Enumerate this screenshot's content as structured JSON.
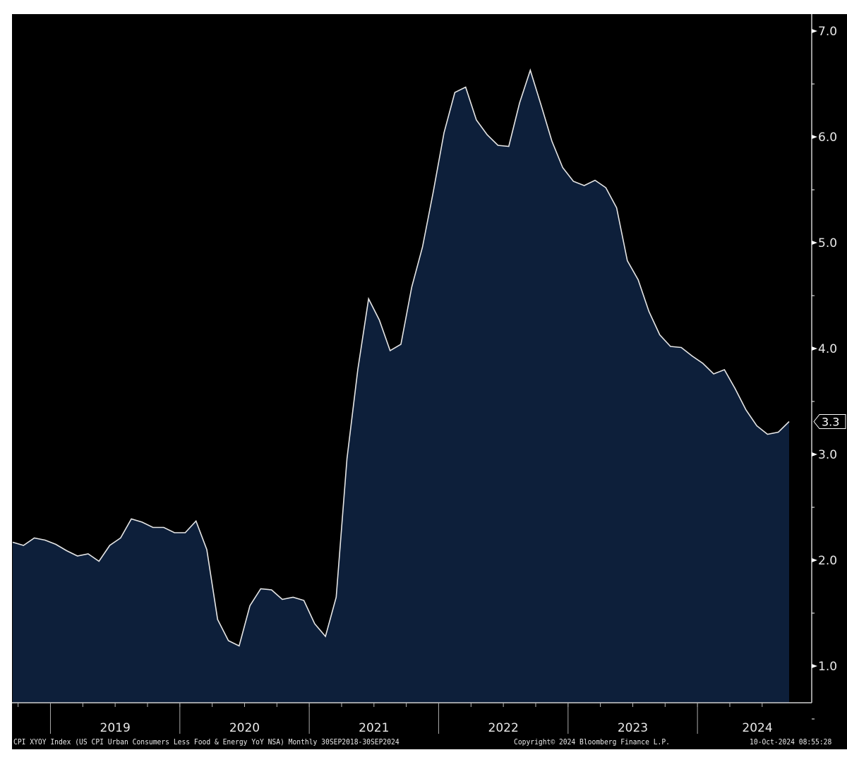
{
  "chart_data": {
    "type": "area",
    "title": "",
    "xlabel": "",
    "ylabel": "",
    "x_start": "2018-09",
    "x_end": "2024-09",
    "frequency": "monthly",
    "ylim": [
      0.65,
      7.15
    ],
    "yticks": [
      "1.0",
      "2.0",
      "3.0",
      "4.0",
      "5.0",
      "6.0",
      "7.0"
    ],
    "year_labels": [
      "2019",
      "2020",
      "2021",
      "2022",
      "2023",
      "2024"
    ],
    "grid": false,
    "y_axis_side": "right",
    "last_value_label": "3.3",
    "series": [
      {
        "values": [
          2.17,
          2.14,
          2.21,
          2.19,
          2.15,
          2.09,
          2.04,
          2.06,
          1.99,
          2.14,
          2.21,
          2.39,
          2.36,
          2.31,
          2.31,
          2.26,
          2.26,
          2.37,
          2.1,
          1.44,
          1.24,
          1.19,
          1.57,
          1.73,
          1.72,
          1.63,
          1.65,
          1.62,
          1.4,
          1.28,
          1.65,
          2.96,
          3.8,
          4.47,
          4.27,
          3.98,
          4.04,
          4.58,
          4.96,
          5.48,
          6.04,
          6.42,
          6.47,
          6.16,
          6.02,
          5.92,
          5.91,
          6.32,
          6.63,
          6.3,
          5.96,
          5.71,
          5.58,
          5.54,
          5.59,
          5.52,
          5.33,
          4.83,
          4.65,
          4.35,
          4.13,
          4.02,
          4.01,
          3.93,
          3.86,
          3.76,
          3.8,
          3.62,
          3.42,
          3.27,
          3.19,
          3.21,
          3.31
        ]
      }
    ],
    "colors": {
      "background": "#000000",
      "fill": "#0d1f3a",
      "line": "#e6e6e6",
      "text": "#e8e8e8"
    }
  },
  "footer": {
    "description": "CPI XYOY Index (US CPI Urban Consumers Less Food & Energy YoY NSA)  Monthly 30SEP2018-30SEP2024",
    "copyright": "Copyright© 2024 Bloomberg Finance L.P.",
    "timestamp": "10-Oct-2024 08:55:28"
  }
}
